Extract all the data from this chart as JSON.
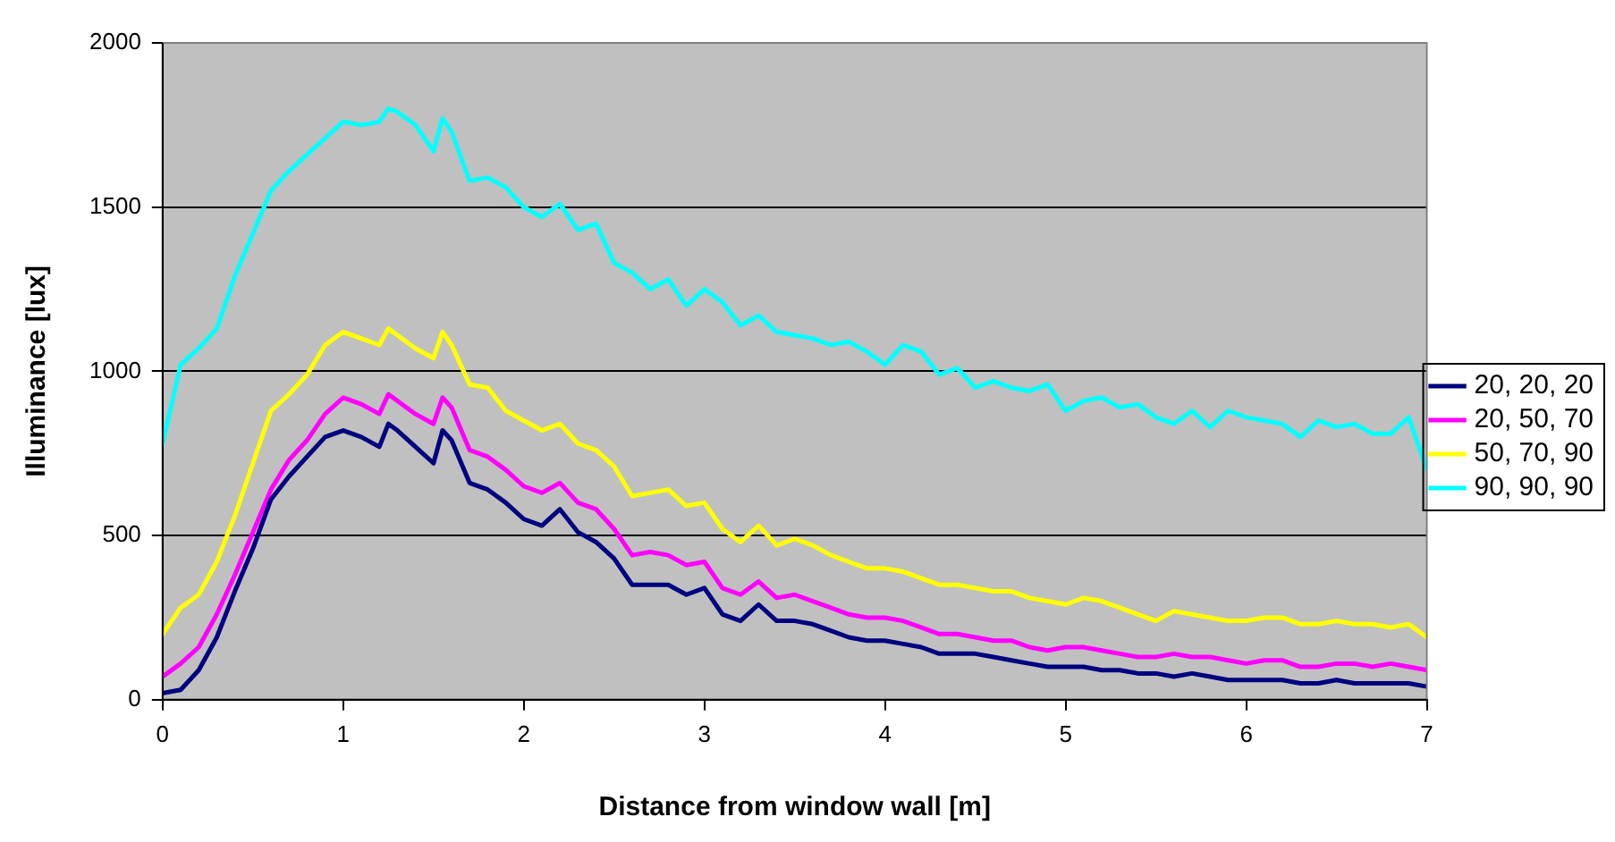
{
  "chart_data": {
    "type": "line",
    "xlabel": "Distance from window wall [m]",
    "ylabel": "Illuminance [lux]",
    "x": [
      0,
      0.1,
      0.2,
      0.3,
      0.4,
      0.5,
      0.6,
      0.7,
      0.8,
      0.9,
      1.0,
      1.1,
      1.2,
      1.25,
      1.3,
      1.4,
      1.5,
      1.55,
      1.6,
      1.7,
      1.8,
      1.9,
      2.0,
      2.1,
      2.2,
      2.3,
      2.4,
      2.5,
      2.6,
      2.7,
      2.8,
      2.9,
      3.0,
      3.1,
      3.2,
      3.3,
      3.4,
      3.5,
      3.6,
      3.7,
      3.8,
      3.9,
      4.0,
      4.1,
      4.2,
      4.3,
      4.4,
      4.5,
      4.6,
      4.7,
      4.8,
      4.9,
      5.0,
      5.1,
      5.2,
      5.3,
      5.4,
      5.5,
      5.6,
      5.7,
      5.8,
      5.9,
      6.0,
      6.1,
      6.2,
      6.3,
      6.4,
      6.5,
      6.6,
      6.7,
      6.8,
      6.9,
      7.0
    ],
    "series": [
      {
        "name": "20, 20, 20",
        "color": "#000080",
        "values": [
          20,
          30,
          90,
          190,
          330,
          460,
          610,
          680,
          740,
          800,
          820,
          800,
          770,
          840,
          820,
          770,
          720,
          820,
          790,
          660,
          640,
          600,
          550,
          530,
          580,
          510,
          480,
          430,
          350,
          350,
          350,
          320,
          340,
          260,
          240,
          290,
          240,
          240,
          230,
          210,
          190,
          180,
          180,
          170,
          160,
          140,
          140,
          140,
          130,
          120,
          110,
          100,
          100,
          100,
          90,
          90,
          80,
          80,
          70,
          80,
          70,
          60,
          60,
          60,
          60,
          50,
          50,
          60,
          50,
          50,
          50,
          50,
          40
        ]
      },
      {
        "name": "20, 50, 70",
        "color": "#ff00ff",
        "values": [
          70,
          110,
          160,
          260,
          380,
          510,
          640,
          730,
          790,
          870,
          920,
          900,
          870,
          930,
          910,
          870,
          840,
          920,
          890,
          760,
          740,
          700,
          650,
          630,
          660,
          600,
          580,
          520,
          440,
          450,
          440,
          410,
          420,
          340,
          320,
          360,
          310,
          320,
          300,
          280,
          260,
          250,
          250,
          240,
          220,
          200,
          200,
          190,
          180,
          180,
          160,
          150,
          160,
          160,
          150,
          140,
          130,
          130,
          140,
          130,
          130,
          120,
          110,
          120,
          120,
          100,
          100,
          110,
          110,
          100,
          110,
          100,
          90
        ]
      },
      {
        "name": "50, 70, 90",
        "color": "#ffff00",
        "values": [
          200,
          280,
          320,
          420,
          560,
          720,
          880,
          930,
          990,
          1080,
          1120,
          1100,
          1080,
          1130,
          1110,
          1070,
          1040,
          1120,
          1080,
          960,
          950,
          880,
          850,
          820,
          840,
          780,
          760,
          710,
          620,
          630,
          640,
          590,
          600,
          520,
          480,
          530,
          470,
          490,
          470,
          440,
          420,
          400,
          400,
          390,
          370,
          350,
          350,
          340,
          330,
          330,
          310,
          300,
          290,
          310,
          300,
          280,
          260,
          240,
          270,
          260,
          250,
          240,
          240,
          250,
          250,
          230,
          230,
          240,
          230,
          230,
          220,
          230,
          190
        ]
      },
      {
        "name": "90, 90, 90",
        "color": "#00ffff",
        "values": [
          780,
          1020,
          1070,
          1130,
          1290,
          1420,
          1550,
          1610,
          1660,
          1710,
          1760,
          1750,
          1760,
          1800,
          1790,
          1750,
          1670,
          1770,
          1730,
          1580,
          1590,
          1560,
          1500,
          1470,
          1510,
          1430,
          1450,
          1330,
          1300,
          1250,
          1280,
          1200,
          1250,
          1210,
          1140,
          1170,
          1120,
          1110,
          1100,
          1080,
          1090,
          1060,
          1020,
          1080,
          1060,
          990,
          1010,
          950,
          970,
          950,
          940,
          960,
          880,
          910,
          920,
          890,
          900,
          860,
          840,
          880,
          830,
          880,
          860,
          850,
          840,
          800,
          850,
          830,
          840,
          810,
          810,
          860,
          700
        ]
      }
    ],
    "xlim": [
      0,
      7
    ],
    "xticks": [
      0,
      1,
      2,
      3,
      4,
      5,
      6,
      7
    ],
    "ylim": [
      0,
      2000
    ],
    "yticks": [
      0,
      500,
      1000,
      1500,
      2000
    ],
    "grid": "y",
    "legend": "right",
    "marker": "none",
    "line_style": "solid"
  }
}
